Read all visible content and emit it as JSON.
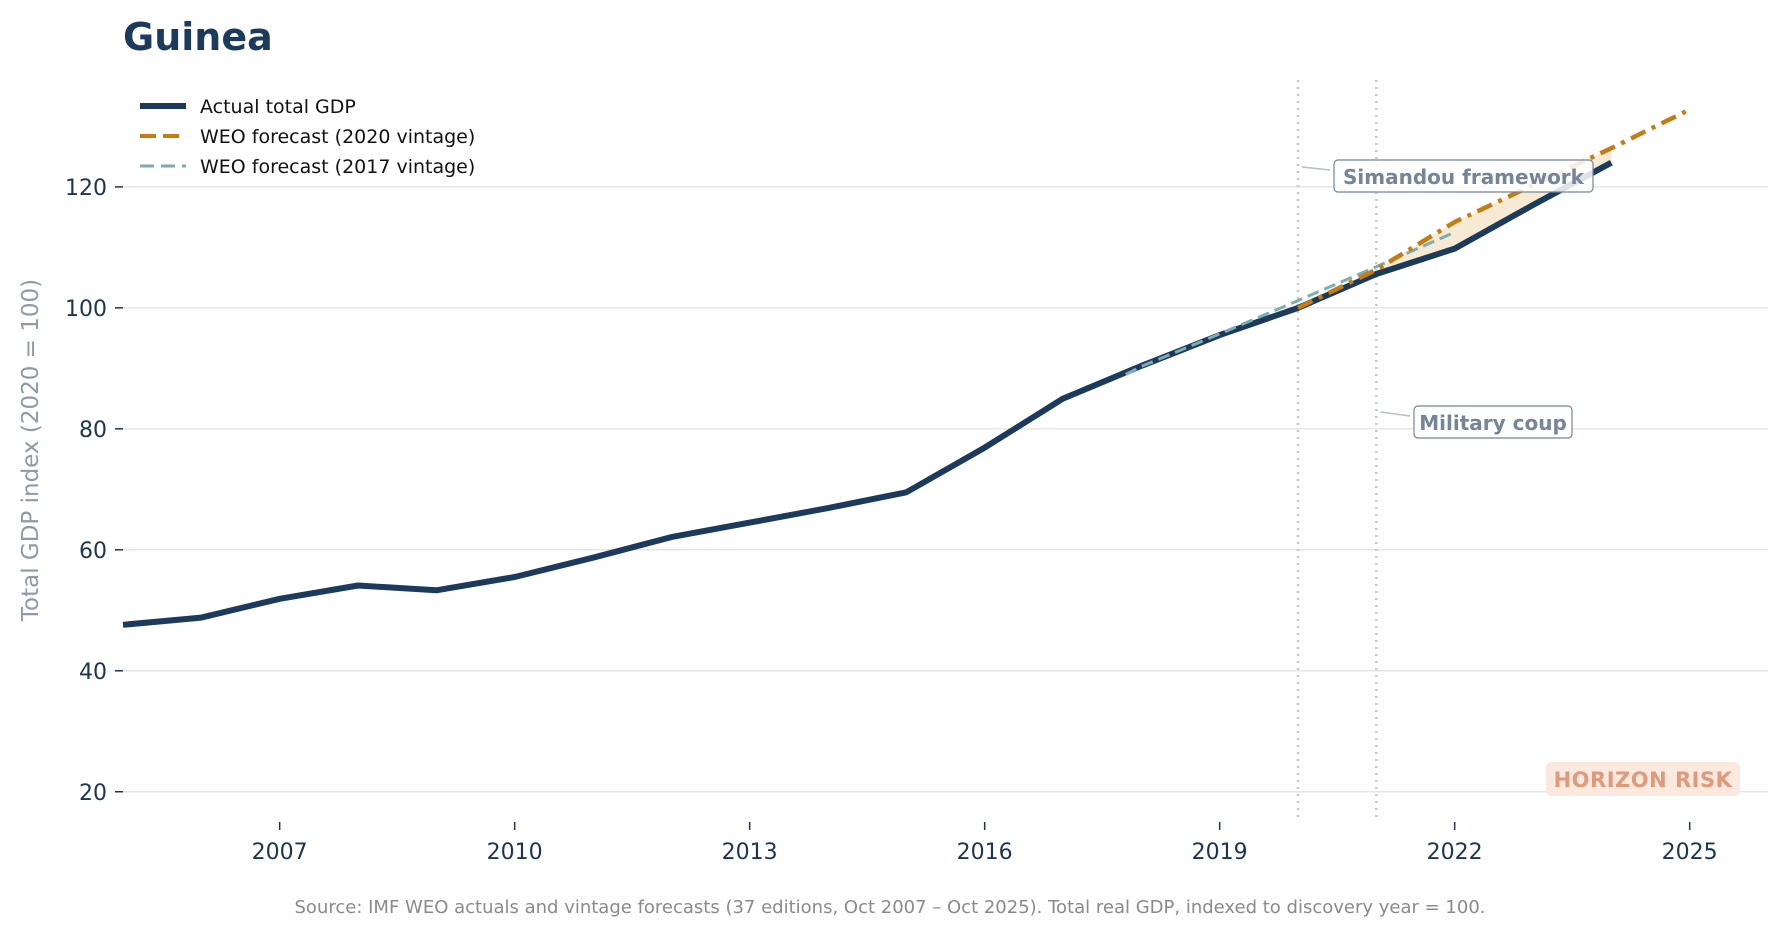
{
  "chart_data": {
    "type": "line",
    "title": "Guinea",
    "ylabel": "Total GDP index (2020 = 100)",
    "xlim": [
      2005,
      2026
    ],
    "ylim": [
      15,
      138
    ],
    "xticks": [
      2007,
      2010,
      2013,
      2016,
      2019,
      2022,
      2025
    ],
    "yticks": [
      20,
      40,
      60,
      80,
      100,
      120
    ],
    "grid": "horizontal",
    "legend_position": "top-left",
    "series": [
      {
        "name": "Actual total GDP",
        "color": "#1b3a5c",
        "style": "solid",
        "points": [
          [
            2005,
            47.6
          ],
          [
            2006,
            48.8
          ],
          [
            2007,
            51.9
          ],
          [
            2008,
            54.1
          ],
          [
            2009,
            53.3
          ],
          [
            2010,
            55.5
          ],
          [
            2011,
            58.7
          ],
          [
            2012,
            62.1
          ],
          [
            2013,
            64.5
          ],
          [
            2014,
            66.9
          ],
          [
            2015,
            69.5
          ],
          [
            2016,
            76.9
          ],
          [
            2017,
            85.0
          ],
          [
            2018,
            90.4
          ],
          [
            2019,
            95.5
          ],
          [
            2020,
            100.0
          ],
          [
            2021,
            105.6
          ],
          [
            2022,
            109.8
          ],
          [
            2023,
            117.0
          ],
          [
            2024,
            124.0
          ]
        ]
      },
      {
        "name": "WEO forecast (2020 vintage)",
        "color": "#c47d12",
        "style": "dashdot",
        "points": [
          [
            2020,
            100.0
          ],
          [
            2021,
            106.3
          ],
          [
            2022,
            114.2
          ],
          [
            2023,
            120.3
          ],
          [
            2024,
            126.4
          ],
          [
            2025,
            132.8
          ]
        ]
      },
      {
        "name": "WEO forecast (2017 vintage)",
        "color": "#7aaeb0",
        "style": "dashed",
        "points": [
          [
            2017.8,
            89.0
          ],
          [
            2018,
            90.3
          ],
          [
            2019,
            95.7
          ],
          [
            2020,
            101.2
          ],
          [
            2021,
            106.8
          ],
          [
            2022,
            112.5
          ]
        ]
      }
    ],
    "annotations": [
      {
        "label": "Simandou framework",
        "x": 2020
      },
      {
        "label": "Military coup",
        "x": 2021
      }
    ],
    "badge": "HORIZON RISK",
    "source": "Source: IMF WEO actuals and vintage forecasts (37 editions, Oct 2007 – Oct 2025). Total real GDP, indexed to discovery year = 100."
  },
  "colors": {
    "title": "#1b3a5c",
    "grid": "#e6e6e6",
    "shade": "#f6e6cc",
    "event_line": "#c8c8c8",
    "annotation": "#748599",
    "badge_bg": "#fbe8df",
    "badge_text": "#dd9b7c"
  }
}
